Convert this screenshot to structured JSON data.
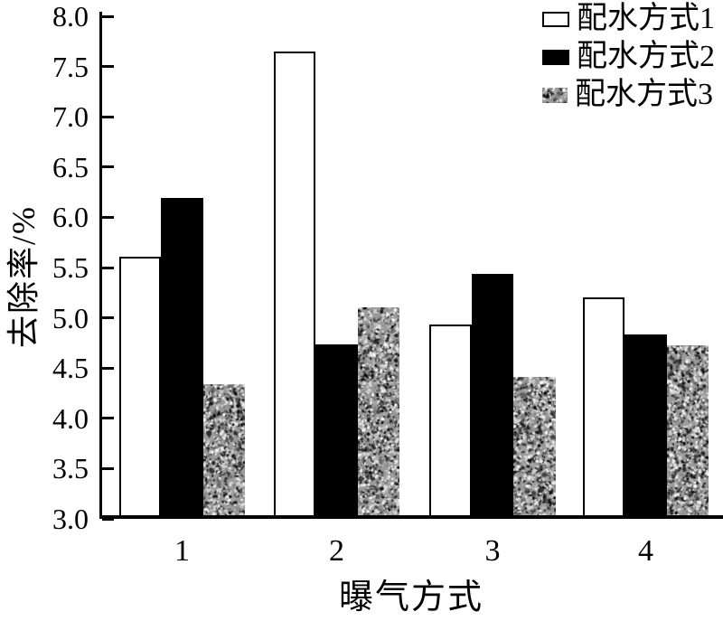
{
  "chart_data": {
    "type": "bar",
    "title": "",
    "xlabel": "曝气方式",
    "ylabel": "去除率/%",
    "categories": [
      "1",
      "2",
      "3",
      "4"
    ],
    "series": [
      {
        "name": "配水方式1",
        "values": [
          5.57,
          7.61,
          4.9,
          5.17
        ],
        "fill": "white",
        "border": "#000000",
        "pattern": "none"
      },
      {
        "name": "配水方式2",
        "values": [
          6.16,
          4.7,
          5.4,
          4.8
        ],
        "fill": "#000000",
        "border": "none",
        "pattern": "none"
      },
      {
        "name": "配水方式3",
        "values": [
          4.3,
          5.07,
          4.38,
          4.69
        ],
        "fill": "speckled-gray",
        "border": "none",
        "pattern": "speckle"
      }
    ],
    "ylim": [
      3.0,
      8.0
    ],
    "ytick_step": 0.5,
    "ytick_format_decimals": 1,
    "grid": false,
    "legend_position": "top-right",
    "colors": {
      "axis": "#000000",
      "background": "#ffffff",
      "bar_black": "#000000",
      "bar_white": "#ffffff",
      "speckle_base": "#9a9a9a"
    }
  }
}
